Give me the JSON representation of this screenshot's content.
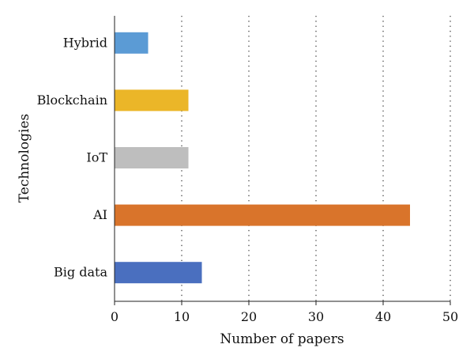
{
  "chart_data": {
    "type": "bar",
    "orientation": "horizontal",
    "categories": [
      "Big data",
      "AI",
      "IoT",
      "Blockchain",
      "Hybrid"
    ],
    "values": [
      13,
      44,
      11,
      11,
      5
    ],
    "colors": [
      "#4a6fbf",
      "#d9742b",
      "#bebebe",
      "#ebb628",
      "#5b9bd5"
    ],
    "xlabel": "Number of papers",
    "ylabel": "Technologies",
    "xlim": [
      0,
      50
    ],
    "xticks": [
      0,
      10,
      20,
      30,
      40,
      50
    ],
    "grid": "vertical dotted",
    "legend": "none"
  }
}
